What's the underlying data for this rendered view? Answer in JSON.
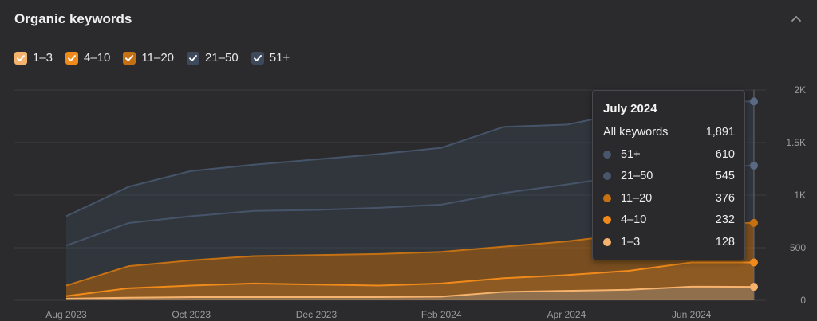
{
  "header": {
    "title": "Organic keywords"
  },
  "legend": [
    {
      "label": "1–3",
      "checked": true,
      "color": "#f6b36d"
    },
    {
      "label": "4–10",
      "checked": true,
      "color": "#f08a1a"
    },
    {
      "label": "11–20",
      "checked": true,
      "color": "#c57113"
    },
    {
      "label": "21–50",
      "checked": true,
      "color": "#3d4a5c"
    },
    {
      "label": "51+",
      "checked": true,
      "color": "#3d4a5c"
    }
  ],
  "icons": {
    "collapse": "chevron-up-icon",
    "checkbox": "check-icon"
  },
  "tooltip": {
    "title": "July 2024",
    "all_label": "All keywords",
    "all_value": "1,891",
    "rows": [
      {
        "label": "51+",
        "value": "610",
        "color": "#48566b"
      },
      {
        "label": "21–50",
        "value": "545",
        "color": "#48566b"
      },
      {
        "label": "11–20",
        "value": "376",
        "color": "#c57113"
      },
      {
        "label": "4–10",
        "value": "232",
        "color": "#f08a1a"
      },
      {
        "label": "1–3",
        "value": "128",
        "color": "#f6b36d"
      }
    ]
  },
  "chart_data": {
    "type": "area",
    "stacked": true,
    "x": [
      "Aug 2023",
      "Sep 2023",
      "Oct 2023",
      "Nov 2023",
      "Dec 2023",
      "Jan 2024",
      "Feb 2024",
      "Mar 2024",
      "Apr 2024",
      "May 2024",
      "Jun 2024",
      "Jul 2024"
    ],
    "x_tick_labels": [
      "Aug 2023",
      "Oct 2023",
      "Dec 2023",
      "Feb 2024",
      "Apr 2024",
      "Jun 2024"
    ],
    "y_tick_labels": [
      "0",
      "500",
      "1K",
      "1.5K",
      "2K"
    ],
    "ylim": [
      0,
      2000
    ],
    "y_axis_position": "right",
    "grid": true,
    "series": [
      {
        "name": "1–3",
        "color": "#f6b36d",
        "values": [
          15,
          25,
          30,
          30,
          30,
          30,
          35,
          80,
          90,
          100,
          130,
          128
        ]
      },
      {
        "name": "4–10",
        "color": "#f08a1a",
        "values": [
          25,
          90,
          110,
          130,
          120,
          110,
          125,
          130,
          150,
          180,
          230,
          232
        ]
      },
      {
        "name": "11–20",
        "color": "#c57113",
        "values": [
          100,
          210,
          240,
          260,
          280,
          300,
          300,
          300,
          320,
          350,
          370,
          376
        ]
      },
      {
        "name": "21–50",
        "color": "#3d4a5c",
        "values": [
          380,
          410,
          420,
          430,
          430,
          440,
          450,
          510,
          540,
          560,
          540,
          545
        ]
      },
      {
        "name": "51+",
        "color": "#3d4a5c",
        "values": [
          280,
          345,
          430,
          440,
          480,
          510,
          540,
          630,
          570,
          600,
          620,
          610
        ]
      }
    ]
  }
}
